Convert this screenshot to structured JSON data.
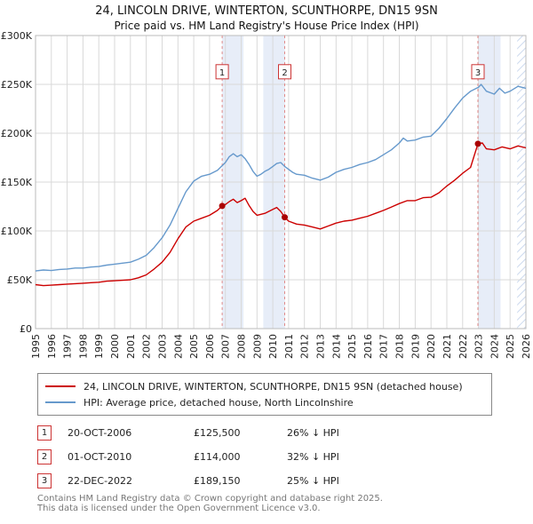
{
  "legend": {
    "swatches": [
      "red-line",
      "blue-line"
    ]
  },
  "transactions": [
    {
      "num": "1",
      "date": "20-OCT-2006",
      "price": "£125,500",
      "hpi": "26% ↓ HPI"
    },
    {
      "num": "2",
      "date": "01-OCT-2010",
      "price": "£114,000",
      "hpi": "32% ↓ HPI"
    },
    {
      "num": "3",
      "date": "22-DEC-2022",
      "price": "£189,150",
      "hpi": "25% ↓ HPI"
    }
  ],
  "footer": {
    "line1": "Contains HM Land Registry data © Crown copyright and database right 2025.",
    "line2": "This data is licensed under the Open Government Licence v3.0."
  },
  "chart_data": {
    "type": "line",
    "title": "24, LINCOLN DRIVE, WINTERTON, SCUNTHORPE, DN15 9SN",
    "subtitle": "Price paid vs. HM Land Registry's House Price Index (HPI)",
    "x_range": [
      1995,
      2026
    ],
    "y_range": [
      0,
      300000
    ],
    "y_ticks": [
      0,
      50000,
      100000,
      150000,
      200000,
      250000,
      300000
    ],
    "y_tick_labels": [
      "£0",
      "£50K",
      "£100K",
      "£150K",
      "£200K",
      "£250K",
      "£300K"
    ],
    "x_ticks": [
      1995,
      1996,
      1997,
      1998,
      1999,
      2000,
      2001,
      2002,
      2003,
      2004,
      2005,
      2006,
      2007,
      2008,
      2009,
      2010,
      2011,
      2012,
      2013,
      2014,
      2015,
      2016,
      2017,
      2018,
      2019,
      2020,
      2021,
      2022,
      2023,
      2024,
      2025,
      2026
    ],
    "grid": true,
    "legend_position": "bottom",
    "colors": {
      "grid": "#d9d9d9",
      "band": "#e7edf8",
      "hatch": "#ccd9ee",
      "sale_line": "#e08a8a",
      "sale_box": "#cc3333",
      "marker": "#aa0000"
    },
    "bands": [
      [
        2006.8,
        2008.15
      ],
      [
        2009.4,
        2010.78
      ],
      [
        2022.98,
        2024.4
      ]
    ],
    "hatch_band": [
      2025.45,
      2026
    ],
    "label_y": 262000,
    "sales": [
      {
        "n": 1,
        "x": 2006.8,
        "y": 125500,
        "date": "20-OCT-2006",
        "price": 125500,
        "pct_vs_hpi": "26% below HPI"
      },
      {
        "n": 2,
        "x": 2010.75,
        "y": 114000,
        "date": "01-OCT-2010",
        "price": 114000,
        "pct_vs_hpi": "32% below HPI"
      },
      {
        "n": 3,
        "x": 2022.97,
        "y": 189150,
        "date": "22-DEC-2022",
        "price": 189150,
        "pct_vs_hpi": "25% below HPI"
      }
    ],
    "series": [
      {
        "id": "price-paid",
        "name": "24, LINCOLN DRIVE, WINTERTON, SCUNTHORPE, DN15 9SN (detached house)",
        "color": "#cc0000",
        "points": [
          [
            1995,
            45000
          ],
          [
            1995.5,
            44000
          ],
          [
            1996,
            44500
          ],
          [
            1996.5,
            45000
          ],
          [
            1997,
            45500
          ],
          [
            1997.5,
            46000
          ],
          [
            1998,
            46500
          ],
          [
            1998.5,
            47000
          ],
          [
            1999,
            47500
          ],
          [
            1999.5,
            48500
          ],
          [
            2000,
            49000
          ],
          [
            2000.5,
            49500
          ],
          [
            2001,
            50000
          ],
          [
            2001.5,
            52000
          ],
          [
            2002,
            55000
          ],
          [
            2002.5,
            61000
          ],
          [
            2003,
            68000
          ],
          [
            2003.5,
            78000
          ],
          [
            2004,
            92000
          ],
          [
            2004.5,
            104000
          ],
          [
            2005,
            110000
          ],
          [
            2005.5,
            113000
          ],
          [
            2006,
            116000
          ],
          [
            2006.5,
            121000
          ],
          [
            2006.8,
            125500
          ],
          [
            2007,
            127000
          ],
          [
            2007.25,
            130000
          ],
          [
            2007.5,
            132500
          ],
          [
            2007.75,
            129000
          ],
          [
            2008,
            131000
          ],
          [
            2008.25,
            133500
          ],
          [
            2008.5,
            126000
          ],
          [
            2008.75,
            120000
          ],
          [
            2009,
            116000
          ],
          [
            2009.5,
            118000
          ],
          [
            2010,
            122000
          ],
          [
            2010.25,
            124000
          ],
          [
            2010.5,
            120000
          ],
          [
            2010.75,
            114000
          ],
          [
            2011,
            110000
          ],
          [
            2011.5,
            107000
          ],
          [
            2012,
            106000
          ],
          [
            2012.5,
            104000
          ],
          [
            2013,
            102000
          ],
          [
            2013.5,
            105000
          ],
          [
            2014,
            108000
          ],
          [
            2014.5,
            110000
          ],
          [
            2015,
            111000
          ],
          [
            2015.5,
            113000
          ],
          [
            2016,
            115000
          ],
          [
            2016.5,
            118000
          ],
          [
            2017,
            121000
          ],
          [
            2017.5,
            124500
          ],
          [
            2018,
            128000
          ],
          [
            2018.5,
            131000
          ],
          [
            2019,
            131000
          ],
          [
            2019.5,
            134000
          ],
          [
            2020,
            134500
          ],
          [
            2020.5,
            139000
          ],
          [
            2021,
            146000
          ],
          [
            2021.5,
            152000
          ],
          [
            2022,
            159000
          ],
          [
            2022.5,
            165000
          ],
          [
            2022.97,
            189150
          ],
          [
            2023.25,
            190000
          ],
          [
            2023.5,
            184000
          ],
          [
            2024,
            183000
          ],
          [
            2024.5,
            186000
          ],
          [
            2025,
            184000
          ],
          [
            2025.5,
            187000
          ],
          [
            2026,
            185000
          ]
        ]
      },
      {
        "id": "hpi",
        "name": "HPI: Average price, detached house, North Lincolnshire",
        "color": "#6699cc",
        "points": [
          [
            1995,
            59000
          ],
          [
            1995.5,
            60000
          ],
          [
            1996,
            59500
          ],
          [
            1996.5,
            60500
          ],
          [
            1997,
            61000
          ],
          [
            1997.5,
            62000
          ],
          [
            1998,
            62000
          ],
          [
            1998.5,
            63000
          ],
          [
            1999,
            63500
          ],
          [
            1999.5,
            65000
          ],
          [
            2000,
            66000
          ],
          [
            2000.5,
            67000
          ],
          [
            2001,
            68000
          ],
          [
            2001.5,
            71000
          ],
          [
            2002,
            75000
          ],
          [
            2002.5,
            83000
          ],
          [
            2003,
            93000
          ],
          [
            2003.5,
            106000
          ],
          [
            2004,
            123000
          ],
          [
            2004.5,
            140000
          ],
          [
            2005,
            151000
          ],
          [
            2005.5,
            156000
          ],
          [
            2006,
            158000
          ],
          [
            2006.5,
            162000
          ],
          [
            2007,
            170000
          ],
          [
            2007.25,
            176000
          ],
          [
            2007.5,
            179000
          ],
          [
            2007.75,
            176000
          ],
          [
            2008,
            178000
          ],
          [
            2008.25,
            174000
          ],
          [
            2008.5,
            168000
          ],
          [
            2008.75,
            161000
          ],
          [
            2009,
            156000
          ],
          [
            2009.25,
            158000
          ],
          [
            2009.5,
            161000
          ],
          [
            2009.75,
            163000
          ],
          [
            2010,
            166000
          ],
          [
            2010.25,
            169000
          ],
          [
            2010.5,
            170000
          ],
          [
            2010.75,
            166000
          ],
          [
            2011,
            163000
          ],
          [
            2011.25,
            160000
          ],
          [
            2011.5,
            158000
          ],
          [
            2012,
            157000
          ],
          [
            2012.5,
            154000
          ],
          [
            2013,
            152000
          ],
          [
            2013.5,
            155000
          ],
          [
            2014,
            160000
          ],
          [
            2014.5,
            163000
          ],
          [
            2015,
            165000
          ],
          [
            2015.5,
            168000
          ],
          [
            2016,
            170000
          ],
          [
            2016.5,
            173000
          ],
          [
            2017,
            178000
          ],
          [
            2017.5,
            183000
          ],
          [
            2018,
            190000
          ],
          [
            2018.25,
            195000
          ],
          [
            2018.5,
            192000
          ],
          [
            2019,
            193000
          ],
          [
            2019.5,
            196000
          ],
          [
            2020,
            197000
          ],
          [
            2020.5,
            205000
          ],
          [
            2021,
            215000
          ],
          [
            2021.5,
            226000
          ],
          [
            2022,
            236000
          ],
          [
            2022.5,
            243000
          ],
          [
            2023,
            247000
          ],
          [
            2023.17,
            250000
          ],
          [
            2023.5,
            243000
          ],
          [
            2024,
            240000
          ],
          [
            2024.33,
            246000
          ],
          [
            2024.67,
            241000
          ],
          [
            2025,
            243000
          ],
          [
            2025.5,
            248000
          ],
          [
            2026,
            246000
          ]
        ]
      }
    ]
  }
}
